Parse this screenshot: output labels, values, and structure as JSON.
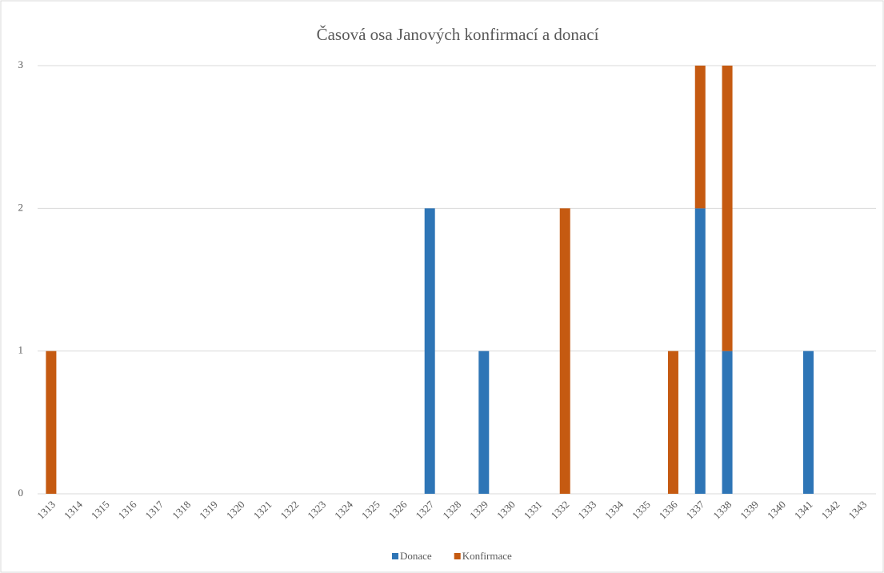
{
  "chart_data": {
    "type": "bar",
    "stacked": true,
    "title": "Časová osa Janových konfirmací a donací",
    "categories": [
      "1313",
      "1314",
      "1315",
      "1316",
      "1317",
      "1318",
      "1319",
      "1320",
      "1321",
      "1322",
      "1323",
      "1324",
      "1325",
      "1326",
      "1327",
      "1328",
      "1329",
      "1330",
      "1331",
      "1332",
      "1333",
      "1334",
      "1335",
      "1336",
      "1337",
      "1338",
      "1339",
      "1340",
      "1341",
      "1342",
      "1343"
    ],
    "series": [
      {
        "name": "Donace",
        "color": "#2e75b6",
        "values": [
          0,
          0,
          0,
          0,
          0,
          0,
          0,
          0,
          0,
          0,
          0,
          0,
          0,
          0,
          2,
          0,
          1,
          0,
          0,
          0,
          0,
          0,
          0,
          0,
          2,
          1,
          0,
          0,
          1,
          0,
          0
        ]
      },
      {
        "name": "Konfirmace",
        "color": "#c55a11",
        "values": [
          1,
          0,
          0,
          0,
          0,
          0,
          0,
          0,
          0,
          0,
          0,
          0,
          0,
          0,
          0,
          0,
          0,
          0,
          0,
          2,
          0,
          0,
          0,
          1,
          1,
          2,
          0,
          0,
          0,
          0,
          0
        ]
      }
    ],
    "ylim": [
      0,
      3
    ],
    "yticks": [
      0,
      1,
      2,
      3
    ],
    "grid": true,
    "legend": "bottom"
  }
}
